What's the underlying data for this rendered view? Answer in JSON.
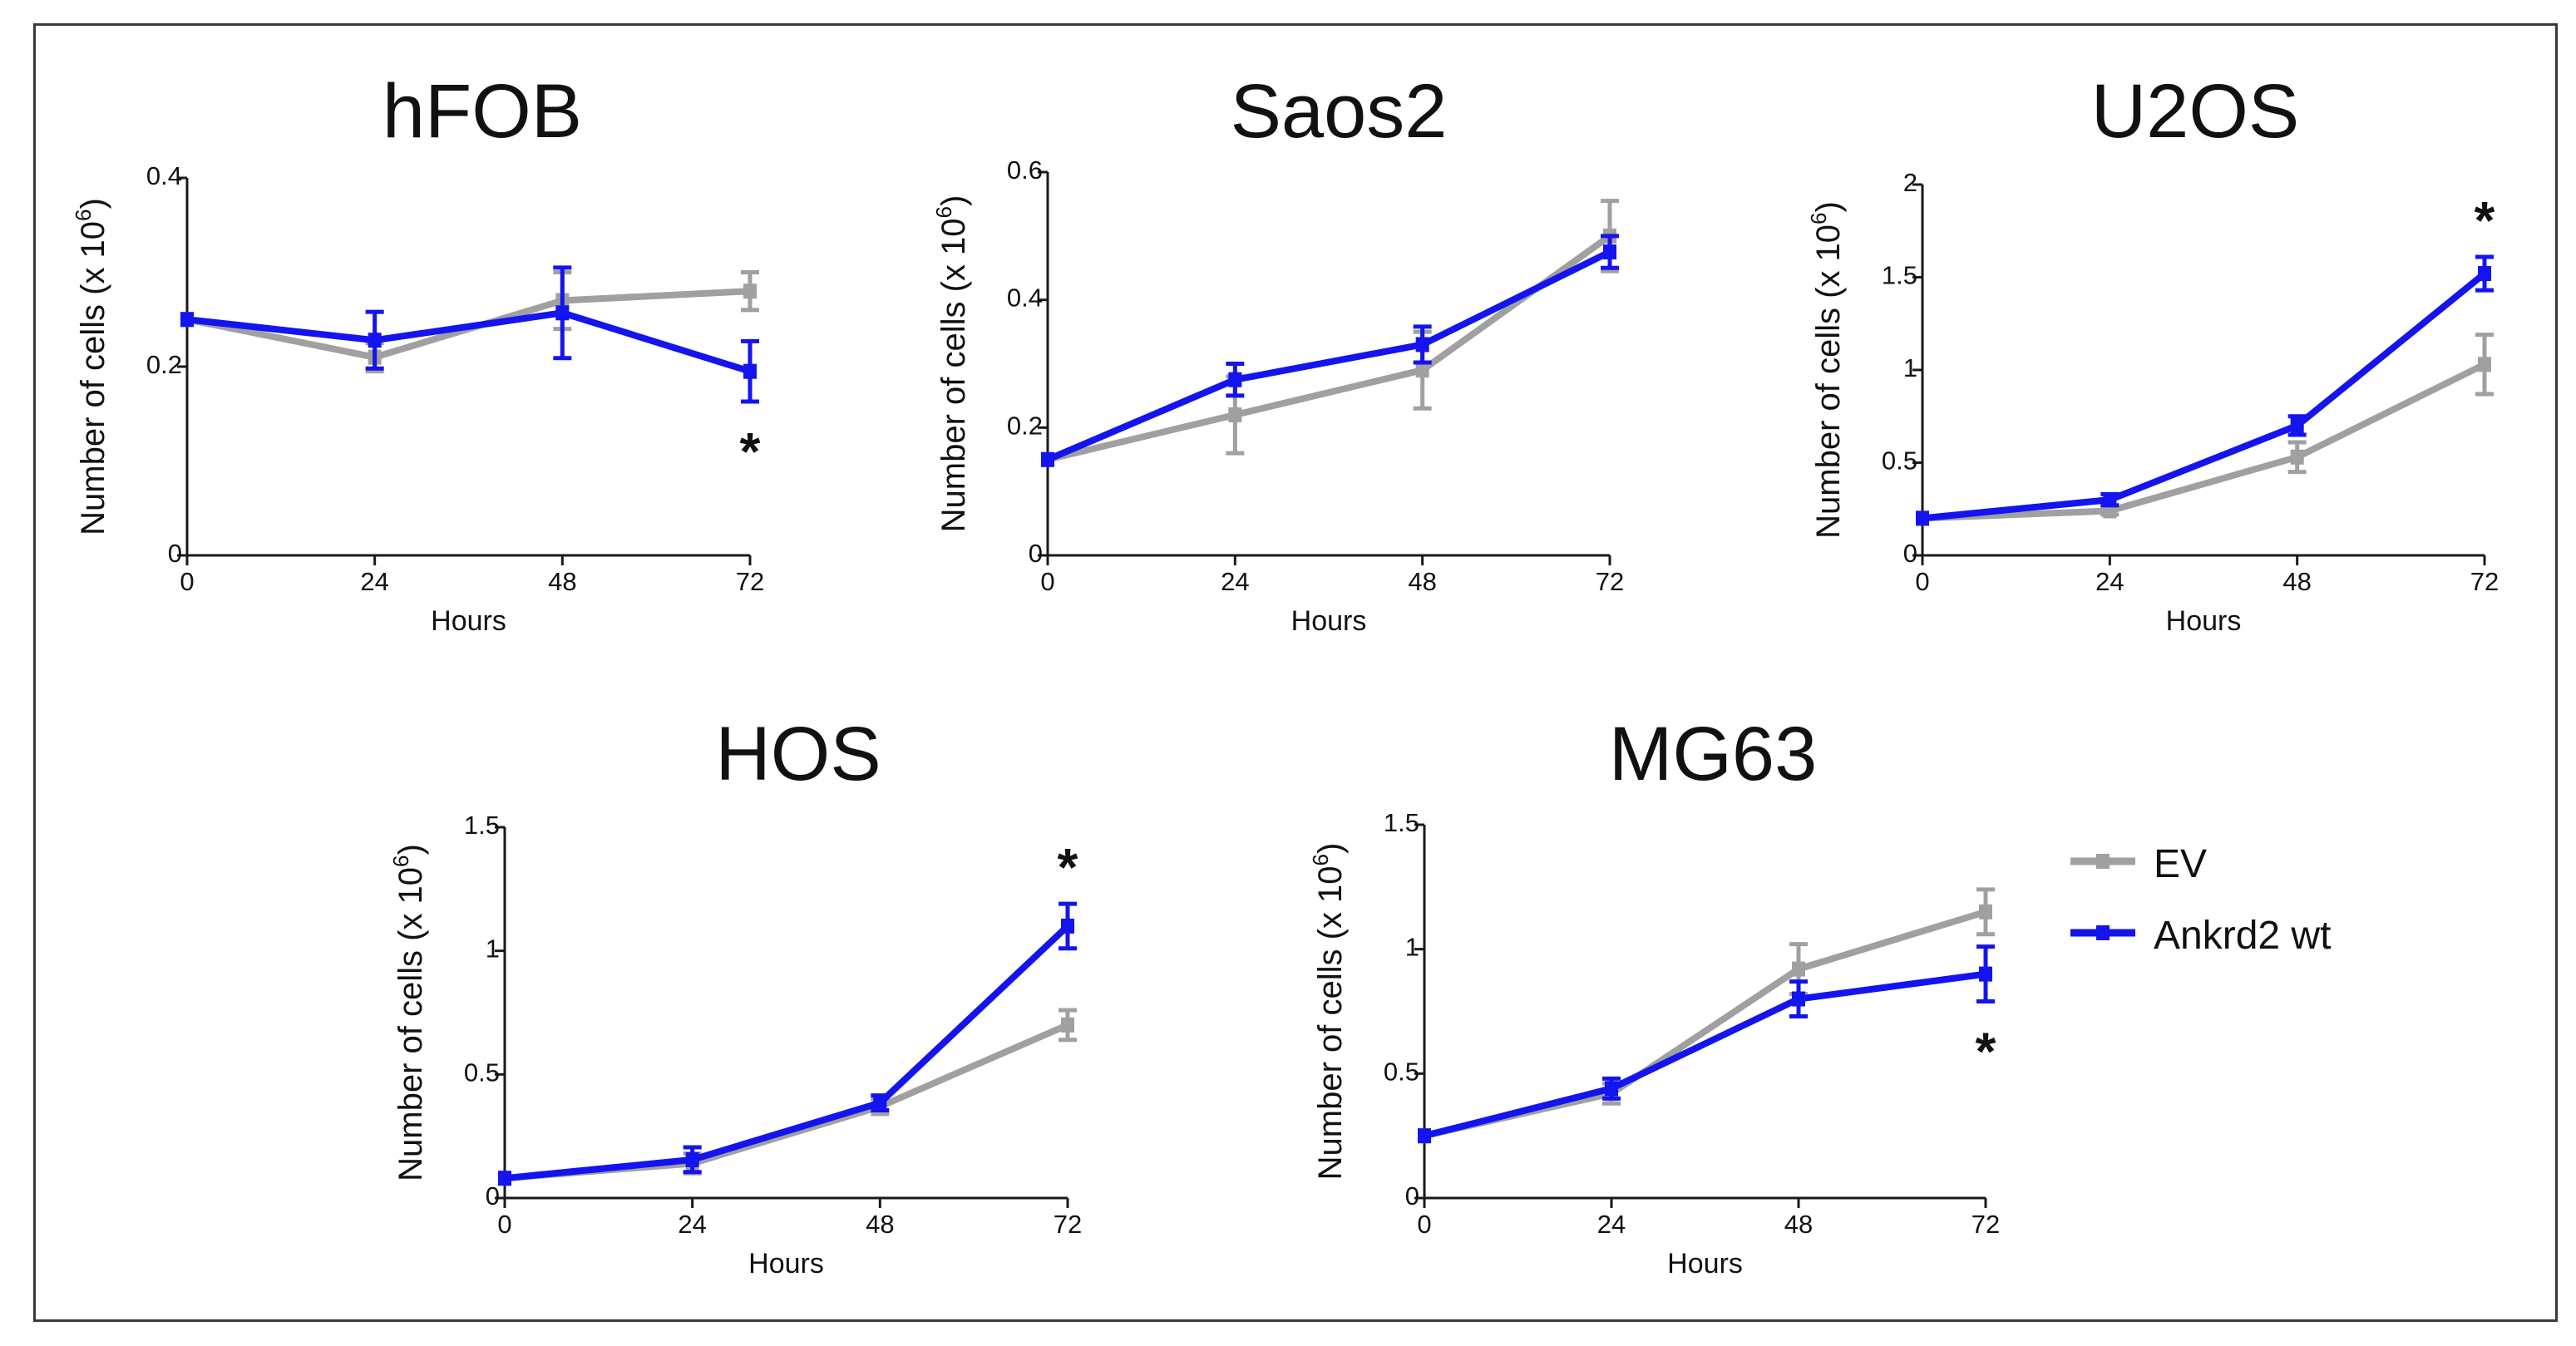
{
  "colors": {
    "ev": "#a0a0a0",
    "ankrd2": "#1414ee",
    "axis": "#1a1a1a",
    "star": "#111111"
  },
  "legend": [
    {
      "label": "EV",
      "color": "#a0a0a0"
    },
    {
      "label": "Ankrd2 wt",
      "color": "#1414ee"
    }
  ],
  "chart_data": [
    {
      "type": "line",
      "title": "hFOB",
      "xlabel": "Hours",
      "ylabel": [
        "Number of cells (x 10",
        "6",
        ")"
      ],
      "x": [
        0,
        24,
        48,
        72
      ],
      "xticks": [
        "0",
        "24",
        "48",
        "72"
      ],
      "ylim": [
        0,
        0.4
      ],
      "yticks": [
        0,
        0.2,
        0.4
      ],
      "yticklabels": [
        "0",
        "0.2",
        "0.4"
      ],
      "series": [
        {
          "name": "EV",
          "values": [
            0.25,
            0.21,
            0.27,
            0.28
          ],
          "errors": [
            0.0,
            0.015,
            0.03,
            0.02
          ]
        },
        {
          "name": "Ankrd2 wt",
          "values": [
            0.25,
            0.228,
            0.257,
            0.195
          ],
          "errors": [
            0.0,
            0.03,
            0.048,
            0.032
          ]
        }
      ],
      "significance": [
        {
          "x": 72,
          "text": "*",
          "position": "below"
        }
      ]
    },
    {
      "type": "line",
      "title": "Saos2",
      "xlabel": "Hours",
      "ylabel": [
        "Number of cells (x 10",
        "6",
        ")"
      ],
      "x": [
        0,
        24,
        48,
        72
      ],
      "xticks": [
        "0",
        "24",
        "48",
        "72"
      ],
      "ylim": [
        0,
        0.6
      ],
      "yticks": [
        0,
        0.2,
        0.4,
        0.6
      ],
      "yticklabels": [
        "0",
        "0.2",
        "0.4",
        "0.6"
      ],
      "series": [
        {
          "name": "EV",
          "values": [
            0.15,
            0.22,
            0.29,
            0.5
          ],
          "errors": [
            0.0,
            0.06,
            0.06,
            0.055
          ]
        },
        {
          "name": "Ankrd2 wt",
          "values": [
            0.15,
            0.275,
            0.33,
            0.475
          ],
          "errors": [
            0.0,
            0.025,
            0.028,
            0.025
          ]
        }
      ],
      "significance": []
    },
    {
      "type": "line",
      "title": "U2OS",
      "xlabel": "Hours",
      "ylabel": [
        "Number of cells (x 10",
        "6",
        ")"
      ],
      "x": [
        0,
        24,
        48,
        72
      ],
      "xticks": [
        "0",
        "24",
        "48",
        "72"
      ],
      "ylim": [
        0,
        2
      ],
      "yticks": [
        0,
        0.5,
        1,
        1.5,
        2
      ],
      "yticklabels": [
        "0",
        "0.5",
        "1",
        "1.5",
        "2"
      ],
      "series": [
        {
          "name": "EV",
          "values": [
            0.2,
            0.24,
            0.53,
            1.03
          ],
          "errors": [
            0.0,
            0.02,
            0.08,
            0.16
          ]
        },
        {
          "name": "Ankrd2 wt",
          "values": [
            0.2,
            0.3,
            0.7,
            1.52
          ],
          "errors": [
            0.0,
            0.03,
            0.05,
            0.09
          ]
        }
      ],
      "significance": [
        {
          "x": 72,
          "text": "*",
          "position": "above"
        }
      ]
    },
    {
      "type": "line",
      "title": "HOS",
      "xlabel": "Hours",
      "ylabel": [
        "Number of cells (x 10",
        "6",
        ")"
      ],
      "x": [
        0,
        24,
        48,
        72
      ],
      "xticks": [
        "0",
        "24",
        "48",
        "72"
      ],
      "ylim": [
        0,
        1.5
      ],
      "yticks": [
        0,
        0.5,
        1,
        1.5
      ],
      "yticklabels": [
        "0",
        "0.5",
        "1",
        "1.5"
      ],
      "series": [
        {
          "name": "EV",
          "values": [
            0.08,
            0.14,
            0.37,
            0.7
          ],
          "errors": [
            0.0,
            0.04,
            0.03,
            0.06
          ]
        },
        {
          "name": "Ankrd2 wt",
          "values": [
            0.08,
            0.155,
            0.385,
            1.1
          ],
          "errors": [
            0.0,
            0.05,
            0.03,
            0.09
          ]
        }
      ],
      "significance": [
        {
          "x": 72,
          "text": "*",
          "position": "above"
        }
      ]
    },
    {
      "type": "line",
      "title": "MG63",
      "xlabel": "Hours",
      "ylabel": [
        "Number of cells (x 10",
        "6",
        ")"
      ],
      "x": [
        0,
        24,
        48,
        72
      ],
      "xticks": [
        "0",
        "24",
        "48",
        "72"
      ],
      "ylim": [
        0,
        1.5
      ],
      "yticks": [
        0,
        0.5,
        1,
        1.5
      ],
      "yticklabels": [
        "0",
        "0.5",
        "1",
        "1.5"
      ],
      "series": [
        {
          "name": "EV",
          "values": [
            0.25,
            0.42,
            0.92,
            1.15
          ],
          "errors": [
            0.0,
            0.04,
            0.1,
            0.09
          ]
        },
        {
          "name": "Ankrd2 wt",
          "values": [
            0.25,
            0.44,
            0.8,
            0.9
          ],
          "errors": [
            0.0,
            0.04,
            0.07,
            0.11
          ]
        }
      ],
      "significance": [
        {
          "x": 72,
          "text": "*",
          "position": "below"
        }
      ]
    }
  ]
}
